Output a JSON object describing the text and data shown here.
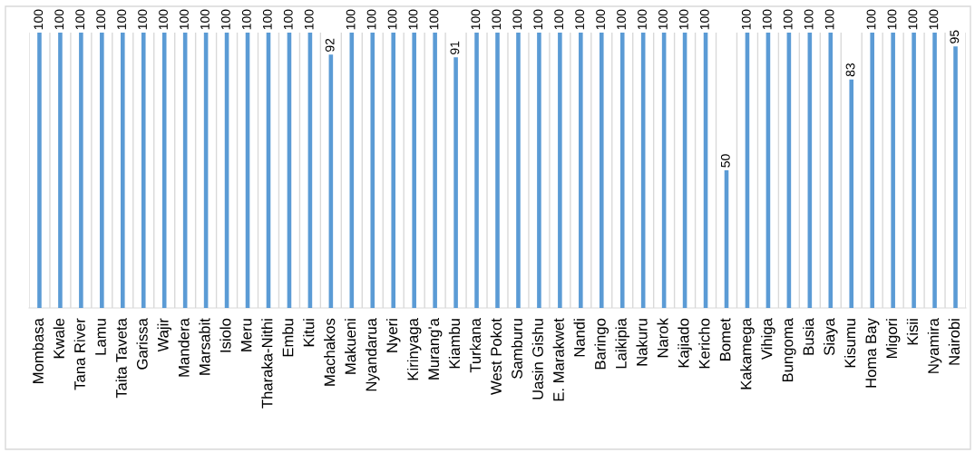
{
  "chart_data": {
    "type": "bar",
    "categories": [
      "Mombasa",
      "Kwale",
      "Tana River",
      "Lamu",
      "Taita Taveta",
      "Garissa",
      "Wajir",
      "Mandera",
      "Marsabit",
      "Isiolo",
      "Meru",
      "Tharaka-Nithi",
      "Embu",
      "Kitui",
      "Machakos",
      "Makueni",
      "Nyandarua",
      "Nyeri",
      "Kirinyaga",
      "Murang'a",
      "Kiambu",
      "Turkana",
      "West Pokot",
      "Samburu",
      "Uasin Gishu",
      "E. Marakwet",
      "Nandi",
      "Baringo",
      "Laikipia",
      "Nakuru",
      "Narok",
      "Kajiado",
      "Kericho",
      "Bomet",
      "Kakamega",
      "Vihiga",
      "Bungoma",
      "Busia",
      "Siaya",
      "Kisumu",
      "Homa Bay",
      "Migori",
      "Kisii",
      "Nyamira",
      "Nairobi"
    ],
    "values": [
      100,
      100,
      100,
      100,
      100,
      100,
      100,
      100,
      100,
      100,
      100,
      100,
      100,
      100,
      92,
      100,
      100,
      100,
      100,
      100,
      91,
      100,
      100,
      100,
      100,
      100,
      100,
      100,
      100,
      100,
      100,
      100,
      100,
      50,
      100,
      100,
      100,
      100,
      100,
      83,
      100,
      100,
      100,
      100,
      95
    ],
    "color": "#5b9bd5",
    "ylim": [
      0,
      100
    ],
    "data_labels": true,
    "grid": "x",
    "tick_labels": "x"
  }
}
